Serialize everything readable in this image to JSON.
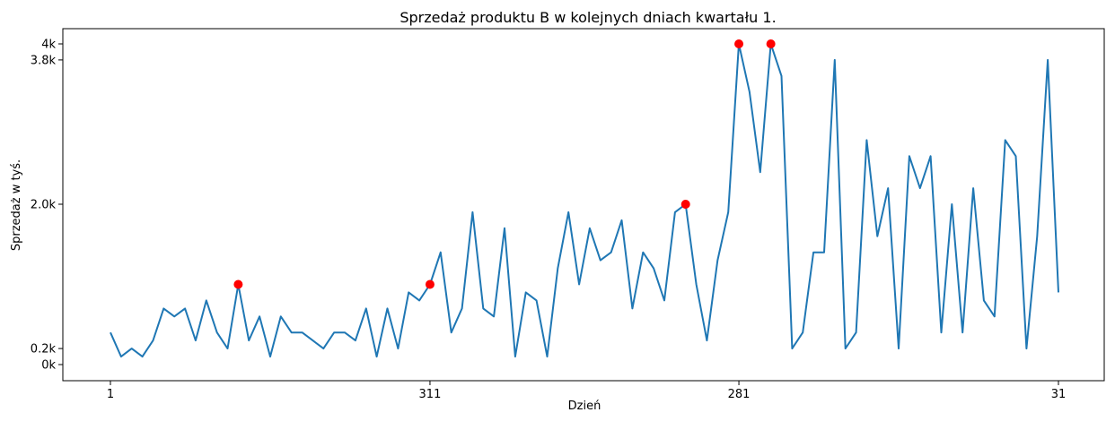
{
  "chart_data": {
    "type": "line",
    "title": "Sprzedaż produktu B w kolejnych dniach kwartału 1.",
    "xlabel": "Dzień",
    "ylabel": "Sprzedaż w tyś.",
    "grid": false,
    "ylim": [
      -100,
      4200
    ],
    "x_ticks": [
      {
        "index": 0,
        "label": "1"
      },
      {
        "index": 30,
        "label": "311"
      },
      {
        "index": 59,
        "label": "281"
      },
      {
        "index": 89,
        "label": "31"
      }
    ],
    "y_ticks": [
      {
        "value": 0,
        "label": "0k"
      },
      {
        "value": 200,
        "label": "0.2k"
      },
      {
        "value": 2000,
        "label": "2.0k"
      },
      {
        "value": 3800,
        "label": "3.8k"
      },
      {
        "value": 4000,
        "label": "4k"
      }
    ],
    "series": [
      {
        "color": "#1f77b4",
        "values": [
          400,
          100,
          200,
          100,
          300,
          700,
          600,
          700,
          300,
          800,
          400,
          200,
          1000,
          300,
          600,
          100,
          600,
          400,
          400,
          300,
          200,
          400,
          400,
          300,
          700,
          100,
          700,
          200,
          900,
          800,
          1000,
          1400,
          400,
          700,
          1900,
          700,
          600,
          1700,
          100,
          900,
          800,
          100,
          1200,
          1900,
          1000,
          1700,
          1300,
          1400,
          1800,
          700,
          1400,
          1200,
          800,
          1900,
          2000,
          1000,
          300,
          1300,
          1900,
          4000,
          3400,
          2400,
          4000,
          3600,
          200,
          400,
          1400,
          1400,
          3800,
          200,
          400,
          2800,
          1600,
          2200,
          200,
          2600,
          2200,
          2600,
          400,
          2000,
          400,
          2200,
          800,
          600,
          2800,
          2600,
          200,
          1600,
          3800,
          900
        ]
      }
    ],
    "highlight_points": {
      "color": "#ff0000",
      "points": [
        {
          "index": 12,
          "value": 1000
        },
        {
          "index": 30,
          "value": 1000
        },
        {
          "index": 54,
          "value": 2000
        },
        {
          "index": 59,
          "value": 4000
        },
        {
          "index": 62,
          "value": 4000
        }
      ]
    }
  }
}
